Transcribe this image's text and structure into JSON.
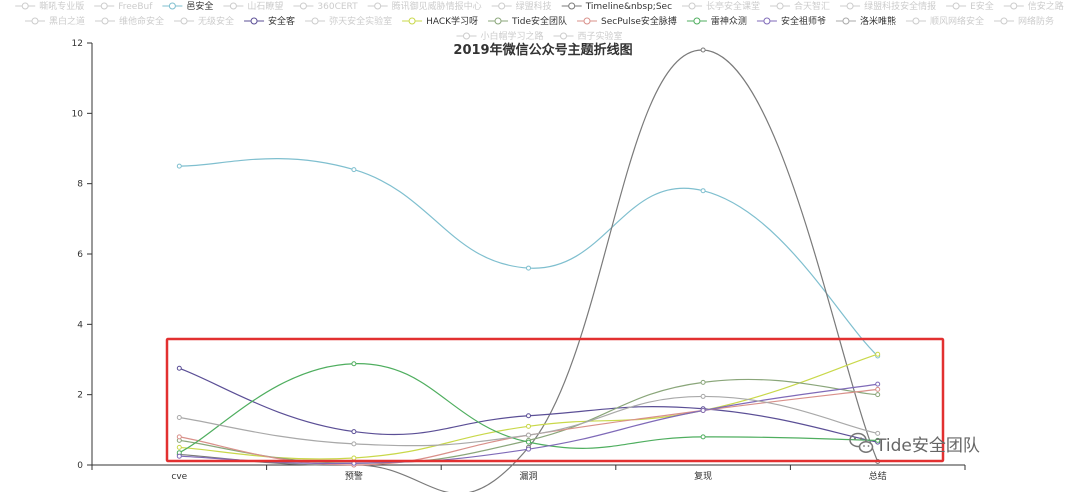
{
  "chart_data": {
    "type": "line",
    "title": "2019年微信公众号主题折线图",
    "categories": [
      "cve",
      "预警",
      "漏洞",
      "复现",
      "总结"
    ],
    "ylim": [
      0,
      12
    ],
    "yticks": [
      0,
      2,
      4,
      6,
      8,
      10,
      12
    ],
    "grid": false,
    "legend_position": "top",
    "series": [
      {
        "name": "嘶吼专业版",
        "active": false,
        "values": [
          null,
          null,
          null,
          null,
          null
        ]
      },
      {
        "name": "FreeBuf",
        "active": false,
        "values": [
          null,
          null,
          null,
          null,
          null
        ]
      },
      {
        "name": "邑安全",
        "active": true,
        "color": "#7fbfcf",
        "values": [
          8.5,
          8.4,
          5.6,
          7.8,
          3.1
        ]
      },
      {
        "name": "山石瞭望",
        "active": false,
        "values": [
          null,
          null,
          null,
          null,
          null
        ]
      },
      {
        "name": "360CERT",
        "active": false,
        "values": [
          null,
          null,
          null,
          null,
          null
        ]
      },
      {
        "name": "腾讯御见威胁情报中心",
        "active": false,
        "values": [
          null,
          null,
          null,
          null,
          null
        ]
      },
      {
        "name": "绿盟科技",
        "active": false,
        "values": [
          null,
          null,
          null,
          null,
          null
        ]
      },
      {
        "name": "Timeline&nbsp;Sec",
        "active": true,
        "color": "#7a7a7a",
        "values": [
          0.3,
          0.0,
          0.5,
          11.8,
          0.1
        ]
      },
      {
        "name": "长亭安全课堂",
        "active": false,
        "values": [
          null,
          null,
          null,
          null,
          null
        ]
      },
      {
        "name": "合天智汇",
        "active": false,
        "values": [
          null,
          null,
          null,
          null,
          null
        ]
      },
      {
        "name": "绿盟科技安全情报",
        "active": false,
        "values": [
          null,
          null,
          null,
          null,
          null
        ]
      },
      {
        "name": "E安全",
        "active": false,
        "values": [
          null,
          null,
          null,
          null,
          null
        ]
      },
      {
        "name": "信安之路",
        "active": false,
        "values": [
          null,
          null,
          null,
          null,
          null
        ]
      },
      {
        "name": "黑白之道",
        "active": false,
        "values": [
          null,
          null,
          null,
          null,
          null
        ]
      },
      {
        "name": "维他命安全",
        "active": false,
        "values": [
          null,
          null,
          null,
          null,
          null
        ]
      },
      {
        "name": "无级安全",
        "active": false,
        "values": [
          null,
          null,
          null,
          null,
          null
        ]
      },
      {
        "name": "安全客",
        "active": true,
        "color": "#5b4f96",
        "values": [
          2.75,
          0.95,
          1.4,
          1.6,
          0.65
        ]
      },
      {
        "name": "弥天安全实验室",
        "active": false,
        "values": [
          null,
          null,
          null,
          null,
          null
        ]
      },
      {
        "name": "HACK学习呀",
        "active": true,
        "color": "#c9d84a",
        "values": [
          0.5,
          0.2,
          1.1,
          1.55,
          3.15
        ]
      },
      {
        "name": "Tide安全团队",
        "active": true,
        "color": "#8aa67a",
        "values": [
          0.7,
          0.05,
          0.7,
          2.35,
          2.0
        ]
      },
      {
        "name": "SecPulse安全脉搏",
        "active": true,
        "color": "#d9908a",
        "values": [
          0.8,
          0.0,
          0.85,
          1.55,
          2.15
        ]
      },
      {
        "name": "雷神众测",
        "active": true,
        "color": "#4fae5f",
        "values": [
          0.35,
          2.88,
          0.65,
          0.8,
          0.7
        ]
      },
      {
        "name": "安全祖师爷",
        "active": true,
        "color": "#7f6ab8",
        "values": [
          0.25,
          0.05,
          0.45,
          1.55,
          2.3
        ]
      },
      {
        "name": "洛米唯熊",
        "active": true,
        "color": "#a9a9a9",
        "values": [
          1.35,
          0.6,
          0.85,
          1.95,
          0.9
        ]
      },
      {
        "name": "顺风网络安全",
        "active": false,
        "values": [
          null,
          null,
          null,
          null,
          null
        ]
      },
      {
        "name": "网络防务",
        "active": false,
        "values": [
          null,
          null,
          null,
          null,
          null
        ]
      },
      {
        "name": "小白帽学习之路",
        "active": false,
        "values": [
          null,
          null,
          null,
          null,
          null
        ]
      },
      {
        "name": "西子实验室",
        "active": false,
        "values": [
          null,
          null,
          null,
          null,
          null
        ]
      }
    ],
    "highlight_box_color": "#e23030",
    "inactive_color": "#cccccc",
    "axis_color": "#333333"
  },
  "watermark": {
    "icon": "wechat-icon",
    "text": "Tide安全团队"
  }
}
